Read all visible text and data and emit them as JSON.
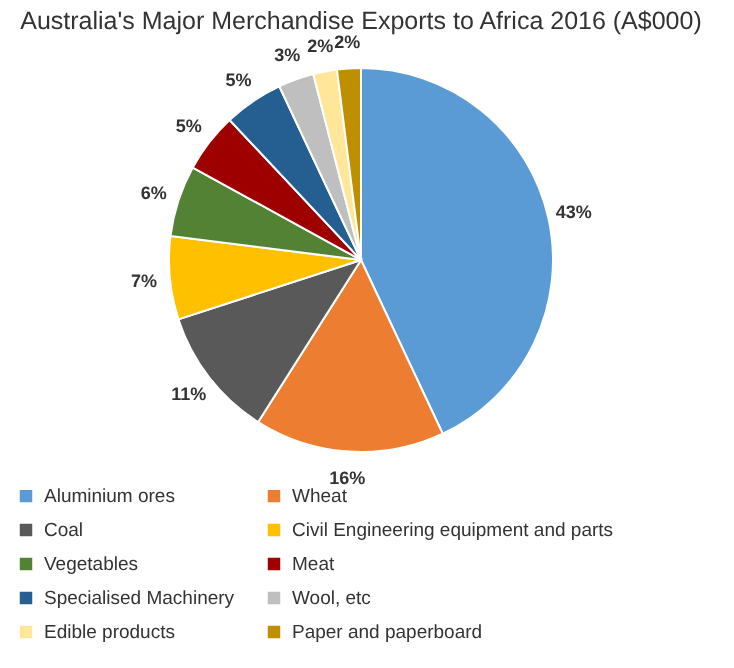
{
  "chart_data": {
    "type": "pie",
    "title": "Australia's Major Merchandise Exports to Africa 2016 (A$000)",
    "categories": [
      "Aluminium ores",
      "Wheat",
      "Coal",
      "Civil Engineering equipment and parts",
      "Vegetables",
      "Meat",
      "Specialised Machinery",
      "Wool, etc",
      "Edible products",
      "Paper and paperboard"
    ],
    "values": [
      43,
      16,
      11,
      7,
      6,
      5,
      5,
      3,
      2,
      2
    ],
    "value_labels": [
      "43%",
      "16%",
      "11%",
      "7%",
      "6%",
      "5%",
      "5%",
      "3%",
      "2%",
      "2%"
    ],
    "colors": [
      "#5b9bd5",
      "#ed7d31",
      "#595959",
      "#ffc000",
      "#548235",
      "#9e0000",
      "#255e91",
      "#bfbfbf",
      "#ffe699",
      "#bf8f00"
    ],
    "legend": "bottom"
  }
}
